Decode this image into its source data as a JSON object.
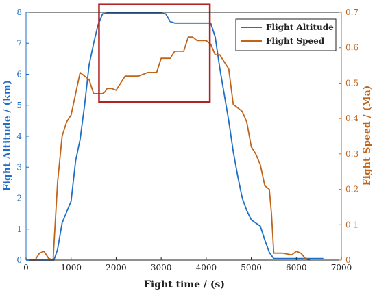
{
  "chart_data": {
    "type": "line",
    "xlabel": "Fight time / (s)",
    "ylabel_left": "Fight Altitude / (km)",
    "ylabel_right": "Fight Speed / (Ma)",
    "xlim": [
      0,
      7000
    ],
    "ylim_left": [
      0,
      8
    ],
    "ylim_right": [
      0,
      0.7
    ],
    "xticks": [
      "0",
      "1000",
      "2000",
      "3000",
      "4000",
      "5000",
      "6000",
      "7000"
    ],
    "yticks_left": [
      "0",
      "1",
      "2",
      "3",
      "4",
      "5",
      "6",
      "7",
      "8"
    ],
    "yticks_right": [
      "0",
      "0.1",
      "0.2",
      "0.3",
      "0.4",
      "0.5",
      "0.6",
      "0.7"
    ],
    "grid": false,
    "legend_position": "top-right",
    "highlight_box": {
      "x": [
        1620,
        4080
      ],
      "y_left": [
        5.1,
        8.25
      ]
    },
    "colors": {
      "altitude": "#1f6fc4",
      "speed": "#c0641a",
      "box": "#b32222",
      "axis": "#222222"
    },
    "series": [
      {
        "name": "Flight Altitude",
        "axis": "left",
        "color": "#1f6fc4",
        "x": [
          0,
          620,
          700,
          800,
          1000,
          1100,
          1200,
          1300,
          1400,
          1500,
          1600,
          1700,
          1800,
          2000,
          2500,
          3000,
          3100,
          3200,
          3300,
          4100,
          4200,
          4300,
          4500,
          4600,
          4700,
          4800,
          4900,
          5000,
          5100,
          5200,
          5300,
          5400,
          5500,
          6000,
          6500,
          6600
        ],
        "y": [
          0,
          0,
          0.35,
          1.2,
          1.9,
          3.2,
          3.9,
          5.0,
          6.3,
          7.0,
          7.6,
          7.95,
          7.97,
          7.97,
          7.97,
          7.97,
          7.95,
          7.7,
          7.65,
          7.65,
          7.2,
          6.2,
          4.5,
          3.5,
          2.7,
          2.0,
          1.6,
          1.3,
          1.2,
          1.1,
          0.65,
          0.25,
          0.05,
          0.05,
          0.05,
          0.05
        ]
      },
      {
        "name": "Flight Speed",
        "axis": "right",
        "color": "#c0641a",
        "x": [
          100,
          200,
          300,
          400,
          500,
          600,
          700,
          800,
          900,
          1000,
          1100,
          1200,
          1300,
          1400,
          1500,
          1600,
          1700,
          1750,
          1800,
          1900,
          2000,
          2100,
          2200,
          2300,
          2500,
          2700,
          2900,
          3000,
          3100,
          3200,
          3300,
          3400,
          3500,
          3600,
          3700,
          3800,
          4000,
          4100,
          4200,
          4300,
          4500,
          4600,
          4700,
          4800,
          4900,
          5000,
          5100,
          5200,
          5300,
          5400,
          5450,
          5500,
          5700,
          5900,
          6000,
          6100,
          6200,
          6300
        ],
        "y": [
          0,
          0,
          0.02,
          0.025,
          0.005,
          0.0,
          0.22,
          0.35,
          0.39,
          0.41,
          0.47,
          0.53,
          0.52,
          0.51,
          0.47,
          0.47,
          0.47,
          0.475,
          0.485,
          0.485,
          0.48,
          0.5,
          0.52,
          0.52,
          0.52,
          0.53,
          0.53,
          0.57,
          0.57,
          0.57,
          0.59,
          0.59,
          0.59,
          0.63,
          0.63,
          0.62,
          0.62,
          0.61,
          0.58,
          0.58,
          0.54,
          0.44,
          0.43,
          0.42,
          0.39,
          0.32,
          0.3,
          0.27,
          0.21,
          0.2,
          0.13,
          0.02,
          0.02,
          0.015,
          0.025,
          0.02,
          0.005,
          0.0
        ]
      }
    ]
  }
}
